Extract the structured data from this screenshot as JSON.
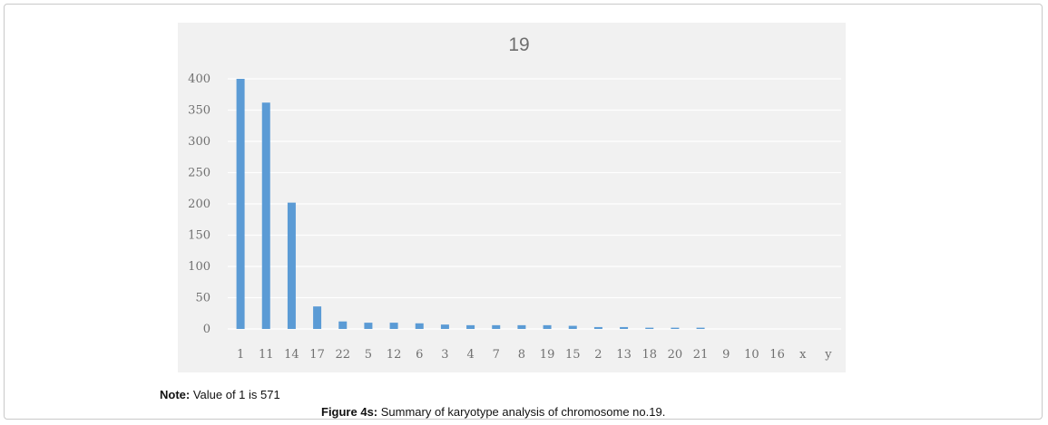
{
  "chart_data": {
    "type": "bar",
    "title": "19",
    "xlabel": "",
    "ylabel": "",
    "categories": [
      "1",
      "11",
      "14",
      "17",
      "22",
      "5",
      "12",
      "6",
      "3",
      "4",
      "7",
      "8",
      "19",
      "15",
      "2",
      "13",
      "18",
      "20",
      "21",
      "9",
      "10",
      "16",
      "x",
      "y"
    ],
    "values": [
      400,
      362,
      202,
      36,
      12,
      10,
      10,
      9,
      7,
      6,
      6,
      6,
      6,
      5,
      3,
      3,
      2,
      2,
      2,
      0,
      0,
      0,
      0,
      0
    ],
    "ylim": [
      0,
      400
    ],
    "yticks": [
      0,
      50,
      100,
      150,
      200,
      250,
      300,
      350,
      400
    ],
    "grid": true,
    "legend": "none",
    "bar_color": "#5b9bd5",
    "background_color": "#f1f1f1",
    "grid_color": "#ffffff"
  },
  "note": {
    "label": "Note:",
    "text": " Value of 1 is 571"
  },
  "caption": {
    "label": "Figure 4s:",
    "text": " Summary of karyotype analysis of chromosome no.19."
  }
}
